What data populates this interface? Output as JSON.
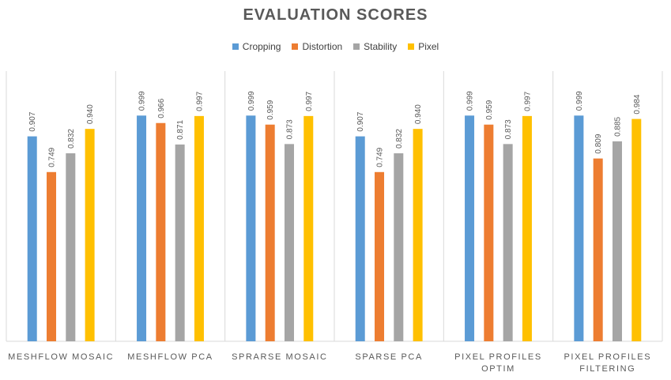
{
  "chart_data": {
    "type": "bar",
    "title": "EVALUATION SCORES",
    "xlabel": "",
    "ylabel": "",
    "ylim": [
      0,
      1.0
    ],
    "grid": false,
    "legend_position": "top",
    "categories": [
      [
        "MESHFLOW MOSAIC"
      ],
      [
        "MESHFLOW PCA"
      ],
      [
        "SPRARSE MOSAIC"
      ],
      [
        "SPARSE PCA"
      ],
      [
        "PIXEL PROFILES",
        "OPTIM"
      ],
      [
        "PIXEL PROFILES",
        "FILTERING"
      ]
    ],
    "series": [
      {
        "name": "Cropping",
        "color": "#5B9BD5",
        "values": [
          0.907,
          0.999,
          0.999,
          0.907,
          0.999,
          0.999
        ]
      },
      {
        "name": "Distortion",
        "color": "#ED7D31",
        "values": [
          0.749,
          0.966,
          0.959,
          0.749,
          0.959,
          0.809
        ]
      },
      {
        "name": "Stability",
        "color": "#A5A5A5",
        "values": [
          0.832,
          0.871,
          0.873,
          0.832,
          0.873,
          0.885
        ]
      },
      {
        "name": "Pixel",
        "color": "#FFC000",
        "values": [
          0.94,
          0.997,
          0.997,
          0.94,
          0.997,
          0.984
        ]
      }
    ]
  }
}
